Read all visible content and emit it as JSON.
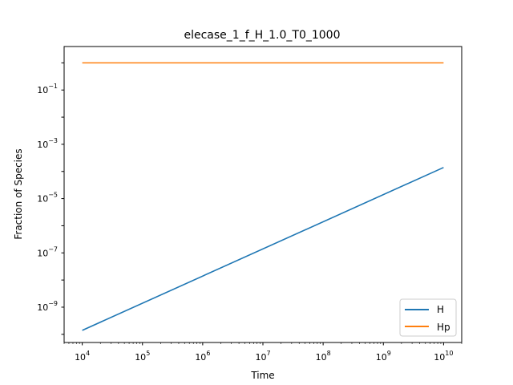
{
  "chart_data": {
    "type": "line",
    "title": "elecase_1_f_H_1.0_T0_1000",
    "xlabel": "Time",
    "ylabel": "Fraction of Species",
    "xscale": "log",
    "yscale": "log",
    "xlim": [
      5000,
      20000000000
    ],
    "ylim": [
      5e-11,
      4
    ],
    "x_ticks": [
      {
        "value": 10000,
        "base": "10",
        "exp": "4"
      },
      {
        "value": 100000,
        "base": "10",
        "exp": "5"
      },
      {
        "value": 1000000,
        "base": "10",
        "exp": "6"
      },
      {
        "value": 10000000,
        "base": "10",
        "exp": "7"
      },
      {
        "value": 100000000,
        "base": "10",
        "exp": "8"
      },
      {
        "value": 1000000000,
        "base": "10",
        "exp": "9"
      },
      {
        "value": 10000000000,
        "base": "10",
        "exp": "10"
      }
    ],
    "y_ticks": [
      {
        "value": 0.1,
        "base": "10",
        "exp": "−1"
      },
      {
        "value": 0.001,
        "base": "10",
        "exp": "−3"
      },
      {
        "value": 1e-05,
        "base": "10",
        "exp": "−5"
      },
      {
        "value": 1e-07,
        "base": "10",
        "exp": "−7"
      },
      {
        "value": 1e-09,
        "base": "10",
        "exp": "−9"
      }
    ],
    "series": [
      {
        "name": "H",
        "color": "#1f77b4",
        "x": [
          10000,
          10000000000
        ],
        "y": [
          1.4e-10,
          0.00014
        ]
      },
      {
        "name": "Hp",
        "color": "#ff7f0e",
        "x": [
          10000,
          10000000000
        ],
        "y": [
          1.0,
          1.0
        ]
      }
    ],
    "legend": "lower-right",
    "grid": false
  }
}
